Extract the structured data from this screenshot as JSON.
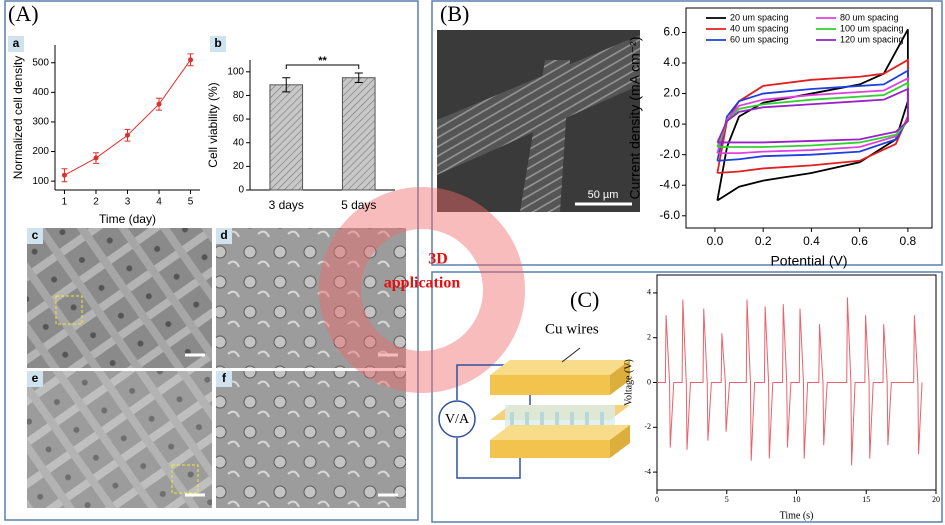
{
  "panels": {
    "A": "(A)",
    "B": "(B)",
    "C": "(C)"
  },
  "subpanels": [
    "a",
    "b",
    "c",
    "d",
    "e",
    "f"
  ],
  "overlay": {
    "line1": "3D",
    "line2": "application"
  },
  "scale_bar": "50 µm",
  "circuit": {
    "wires": "Cu wires",
    "meter": "V/A"
  },
  "chart_data": [
    {
      "type": "line",
      "x": [
        1,
        2,
        3,
        4,
        5
      ],
      "values": [
        120,
        178,
        255,
        360,
        510
      ],
      "errors": [
        22,
        18,
        20,
        20,
        20
      ],
      "color": "#e0302a",
      "xlabel": "Time (day)",
      "ylabel": "Normalized cell density",
      "xlim": [
        0.7,
        5.3
      ],
      "ylim": [
        70,
        560
      ],
      "xticks": [
        1,
        2,
        3,
        4,
        5
      ],
      "yticks": [
        100,
        200,
        300,
        400,
        500
      ]
    },
    {
      "type": "bar",
      "categories": [
        "3 days",
        "5 days"
      ],
      "values": [
        89,
        95
      ],
      "errors": [
        6,
        4
      ],
      "color": "#b5b5b5",
      "ylabel": "Cell viability (%)",
      "ylim": [
        0,
        110
      ],
      "yticks": [
        0,
        20,
        40,
        60,
        80,
        100
      ],
      "annotation": "**"
    },
    {
      "type": "line",
      "x": [
        0.01,
        0.05,
        0.1,
        0.2,
        0.4,
        0.6,
        0.7,
        0.8,
        0.8,
        0.75,
        0.6,
        0.4,
        0.2,
        0.1,
        0.01
      ],
      "series": [
        {
          "name": "20 um spacing",
          "color": "#000000",
          "values": [
            -5,
            -1.5,
            0.5,
            1.4,
            2.0,
            2.6,
            3.3,
            6.2,
            1.5,
            -1.0,
            -2.5,
            -3.2,
            -3.7,
            -4.1,
            -5
          ]
        },
        {
          "name": "40 um spacing",
          "color": "#e02020",
          "values": [
            -3.2,
            0.2,
            1.5,
            2.5,
            2.9,
            3.1,
            3.3,
            4.2,
            0.5,
            -1.3,
            -2.4,
            -2.7,
            -2.9,
            -3.1,
            -3.2
          ]
        },
        {
          "name": "60 um spacing",
          "color": "#1f3fe0",
          "values": [
            -2.4,
            0.5,
            1.5,
            2.0,
            2.3,
            2.5,
            2.6,
            3.5,
            0.3,
            -1.0,
            -1.8,
            -2.0,
            -2.1,
            -2.3,
            -2.4
          ]
        },
        {
          "name": "80 um spacing",
          "color": "#e040e0",
          "values": [
            -1.9,
            0.3,
            1.2,
            1.6,
            1.9,
            2.1,
            2.2,
            3.0,
            0.3,
            -0.8,
            -1.5,
            -1.7,
            -1.8,
            -1.9,
            -1.9
          ]
        },
        {
          "name": "100 um spacing",
          "color": "#30d030",
          "values": [
            -1.5,
            0.2,
            1.0,
            1.3,
            1.6,
            1.8,
            1.9,
            2.7,
            0.2,
            -0.7,
            -1.2,
            -1.4,
            -1.5,
            -1.5,
            -1.5
          ]
        },
        {
          "name": "120 um spacing",
          "color": "#9a20c8",
          "values": [
            -1.2,
            0.2,
            0.8,
            1.1,
            1.3,
            1.5,
            1.6,
            2.3,
            0.2,
            -0.5,
            -1.0,
            -1.1,
            -1.2,
            -1.2,
            -1.2
          ]
        }
      ],
      "xlabel": "Potential (V)",
      "ylabel": "Current density (mA cm⁻²)",
      "xlim": [
        -0.12,
        0.9
      ],
      "ylim": [
        -6.8,
        7.6
      ],
      "xticks": [
        {
          "value": 0,
          "label": "0.0"
        },
        0.2,
        0.4,
        0.6,
        0.8
      ],
      "yticks": [
        {
          "value": -6,
          "label": "-6.0"
        },
        {
          "value": -4,
          "label": "-4.0"
        },
        {
          "value": -2,
          "label": "-2.0"
        },
        {
          "value": 0,
          "label": "0.0"
        },
        {
          "value": 2,
          "label": "2.0"
        },
        {
          "value": 4,
          "label": "4.0"
        },
        {
          "value": 6,
          "label": "6.0"
        }
      ]
    },
    {
      "type": "line",
      "color": "#e8636b",
      "xlabel": "Time (s)",
      "ylabel": "Voltage (V)",
      "xlim": [
        0,
        20
      ],
      "ylim": [
        -4.8,
        4.8
      ],
      "xticks": [
        0,
        5,
        10,
        15,
        20
      ],
      "yticks": [
        -4,
        -2,
        0,
        2,
        4
      ],
      "x": [
        0,
        0.6,
        0.65,
        0.9,
        0.95,
        1.2,
        1.8,
        1.85,
        2.1,
        2.15,
        2.4,
        3.3,
        3.35,
        3.6,
        3.65,
        3.9,
        4.6,
        4.65,
        4.9,
        4.95,
        5.2,
        6.4,
        6.45,
        6.7,
        6.75,
        7.0,
        7.7,
        7.75,
        8.0,
        8.05,
        8.3,
        9.0,
        9.05,
        9.3,
        9.35,
        9.6,
        10.2,
        10.25,
        10.5,
        10.55,
        10.8,
        11.6,
        11.65,
        11.9,
        11.95,
        12.2,
        13.6,
        13.65,
        13.9,
        13.95,
        14.2,
        14.9,
        14.95,
        15.2,
        15.25,
        15.5,
        16.2,
        16.25,
        16.5,
        16.55,
        16.8,
        18.4,
        18.45,
        18.7,
        18.75,
        19.0
      ],
      "values": [
        0,
        0,
        3.0,
        0,
        -2.9,
        0,
        0,
        3.7,
        0,
        -3.0,
        0,
        0,
        3.3,
        0,
        -2.6,
        0,
        0,
        2.2,
        0,
        -2.2,
        0,
        0,
        3.7,
        0,
        -3.5,
        0,
        0,
        3.4,
        0,
        -3.4,
        0,
        0,
        3.5,
        0,
        -2.9,
        0,
        0,
        3.3,
        0,
        -3.4,
        0,
        0,
        2.6,
        0,
        -2.8,
        0,
        0,
        3.8,
        0,
        -3.7,
        0,
        0,
        3.0,
        0,
        -3.4,
        0,
        0,
        2.6,
        0,
        -2.8,
        0,
        0,
        3.0,
        0,
        -3.2,
        0
      ]
    }
  ]
}
